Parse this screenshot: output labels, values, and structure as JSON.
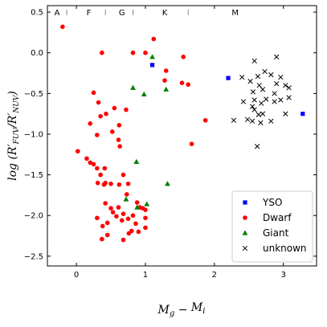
{
  "chart_data": {
    "type": "scatter",
    "xlabel": "M_g − M_i",
    "ylabel": "log (R′_FUV/R′_NUV)",
    "xlim": [
      -0.42,
      3.48
    ],
    "ylim": [
      -2.62,
      0.58
    ],
    "x_ticks": [
      0,
      1,
      2,
      3
    ],
    "y_ticks": [
      0.5,
      0.0,
      -0.5,
      -1.0,
      -1.5,
      -2.0,
      -2.5
    ],
    "x_tick_labels": [
      "0",
      "1",
      "2",
      "3"
    ],
    "y_tick_labels": [
      "0.5",
      "0.0",
      "−0.5",
      "−1.0",
      "−1.5",
      "−2.0",
      "−2.5"
    ],
    "spectral_classes": [
      {
        "label": "A",
        "x": -0.28
      },
      {
        "label": "F",
        "x": 0.18
      },
      {
        "label": "G",
        "x": 0.66
      },
      {
        "label": "K",
        "x": 1.28
      },
      {
        "label": "M",
        "x": 2.3
      }
    ],
    "class_dividers": [
      -0.14,
      0.42,
      0.82,
      1.62
    ],
    "legend": {
      "position": "lower-right"
    },
    "series": [
      {
        "name": "YSO",
        "marker": "square",
        "color": "#0000ff",
        "points": [
          [
            1.1,
            -0.15
          ],
          [
            2.2,
            -0.31
          ],
          [
            3.28,
            -0.75
          ]
        ]
      },
      {
        "name": "Dwarf",
        "marker": "circle",
        "color": "#ff0000",
        "points": [
          [
            -0.2,
            0.32
          ],
          [
            0.37,
            0.0
          ],
          [
            0.82,
            0.0
          ],
          [
            1.12,
            0.17
          ],
          [
            1.0,
            0.0
          ],
          [
            1.3,
            -0.22
          ],
          [
            1.28,
            -0.34
          ],
          [
            1.55,
            -0.05
          ],
          [
            1.53,
            -0.37
          ],
          [
            1.62,
            -0.39
          ],
          [
            0.25,
            -0.49
          ],
          [
            0.32,
            -0.61
          ],
          [
            0.55,
            -0.68
          ],
          [
            0.35,
            -0.78
          ],
          [
            0.43,
            -0.75
          ],
          [
            0.2,
            -0.87
          ],
          [
            0.72,
            -0.7
          ],
          [
            0.62,
            -0.89
          ],
          [
            0.52,
            -0.97
          ],
          [
            0.3,
            -1.01
          ],
          [
            0.61,
            -1.07
          ],
          [
            1.87,
            -0.83
          ],
          [
            1.67,
            -1.12
          ],
          [
            0.02,
            -1.21
          ],
          [
            0.15,
            -1.3
          ],
          [
            0.2,
            -1.35
          ],
          [
            0.25,
            -1.37
          ],
          [
            0.3,
            -1.42
          ],
          [
            0.41,
            -1.42
          ],
          [
            0.35,
            -1.5
          ],
          [
            0.31,
            -1.6
          ],
          [
            0.4,
            -1.62
          ],
          [
            0.42,
            -1.6
          ],
          [
            0.63,
            -1.15
          ],
          [
            0.68,
            -1.5
          ],
          [
            0.5,
            -1.61
          ],
          [
            0.62,
            -1.62
          ],
          [
            0.75,
            -1.61
          ],
          [
            0.73,
            -1.74
          ],
          [
            0.42,
            -1.85
          ],
          [
            0.5,
            -1.91
          ],
          [
            0.61,
            -1.9
          ],
          [
            0.68,
            -1.98
          ],
          [
            0.53,
            -1.96
          ],
          [
            0.58,
            -2.01
          ],
          [
            0.88,
            -1.84
          ],
          [
            0.92,
            -1.9
          ],
          [
            0.96,
            -1.91
          ],
          [
            1.0,
            -1.93
          ],
          [
            0.3,
            -2.03
          ],
          [
            0.45,
            -2.09
          ],
          [
            0.38,
            -2.13
          ],
          [
            0.45,
            -2.24
          ],
          [
            0.37,
            -2.29
          ],
          [
            0.66,
            -2.06
          ],
          [
            0.75,
            -2.04
          ],
          [
            0.82,
            -2.0
          ],
          [
            0.86,
            -2.1
          ],
          [
            0.9,
            -2.2
          ],
          [
            0.8,
            -2.19
          ],
          [
            0.76,
            -2.22
          ],
          [
            0.68,
            -2.3
          ],
          [
            1.0,
            -2.03
          ],
          [
            1.0,
            -2.15
          ]
        ]
      },
      {
        "name": "Giant",
        "marker": "triangle",
        "color": "#008000",
        "points": [
          [
            1.1,
            -0.05
          ],
          [
            0.82,
            -0.43
          ],
          [
            0.98,
            -0.51
          ],
          [
            1.3,
            -0.45
          ],
          [
            0.87,
            -1.34
          ],
          [
            0.72,
            -1.8
          ],
          [
            0.88,
            -1.9
          ],
          [
            1.02,
            -1.86
          ],
          [
            1.32,
            -1.61
          ]
        ]
      },
      {
        "name": "unknown",
        "marker": "x",
        "color": "#000000",
        "points": [
          [
            2.58,
            -0.1
          ],
          [
            2.9,
            -0.05
          ],
          [
            2.4,
            -0.3
          ],
          [
            2.52,
            -0.35
          ],
          [
            2.63,
            -0.29
          ],
          [
            2.73,
            -0.23
          ],
          [
            2.82,
            -0.27
          ],
          [
            2.96,
            -0.3
          ],
          [
            2.9,
            -0.38
          ],
          [
            3.03,
            -0.4
          ],
          [
            3.08,
            -0.43
          ],
          [
            2.65,
            -0.4
          ],
          [
            2.7,
            -0.45
          ],
          [
            2.56,
            -0.48
          ],
          [
            2.87,
            -0.5
          ],
          [
            2.42,
            -0.6
          ],
          [
            2.75,
            -0.57
          ],
          [
            2.58,
            -0.58
          ],
          [
            2.68,
            -0.62
          ],
          [
            2.87,
            -0.6
          ],
          [
            2.96,
            -0.58
          ],
          [
            3.08,
            -0.55
          ],
          [
            2.55,
            -0.66
          ],
          [
            2.58,
            -0.7
          ],
          [
            2.64,
            -0.76
          ],
          [
            2.7,
            -0.75
          ],
          [
            2.28,
            -0.83
          ],
          [
            2.48,
            -0.82
          ],
          [
            2.55,
            -0.84
          ],
          [
            2.67,
            -0.86
          ],
          [
            2.82,
            -0.84
          ],
          [
            3.03,
            -0.75
          ],
          [
            2.62,
            -1.15
          ]
        ]
      }
    ]
  }
}
